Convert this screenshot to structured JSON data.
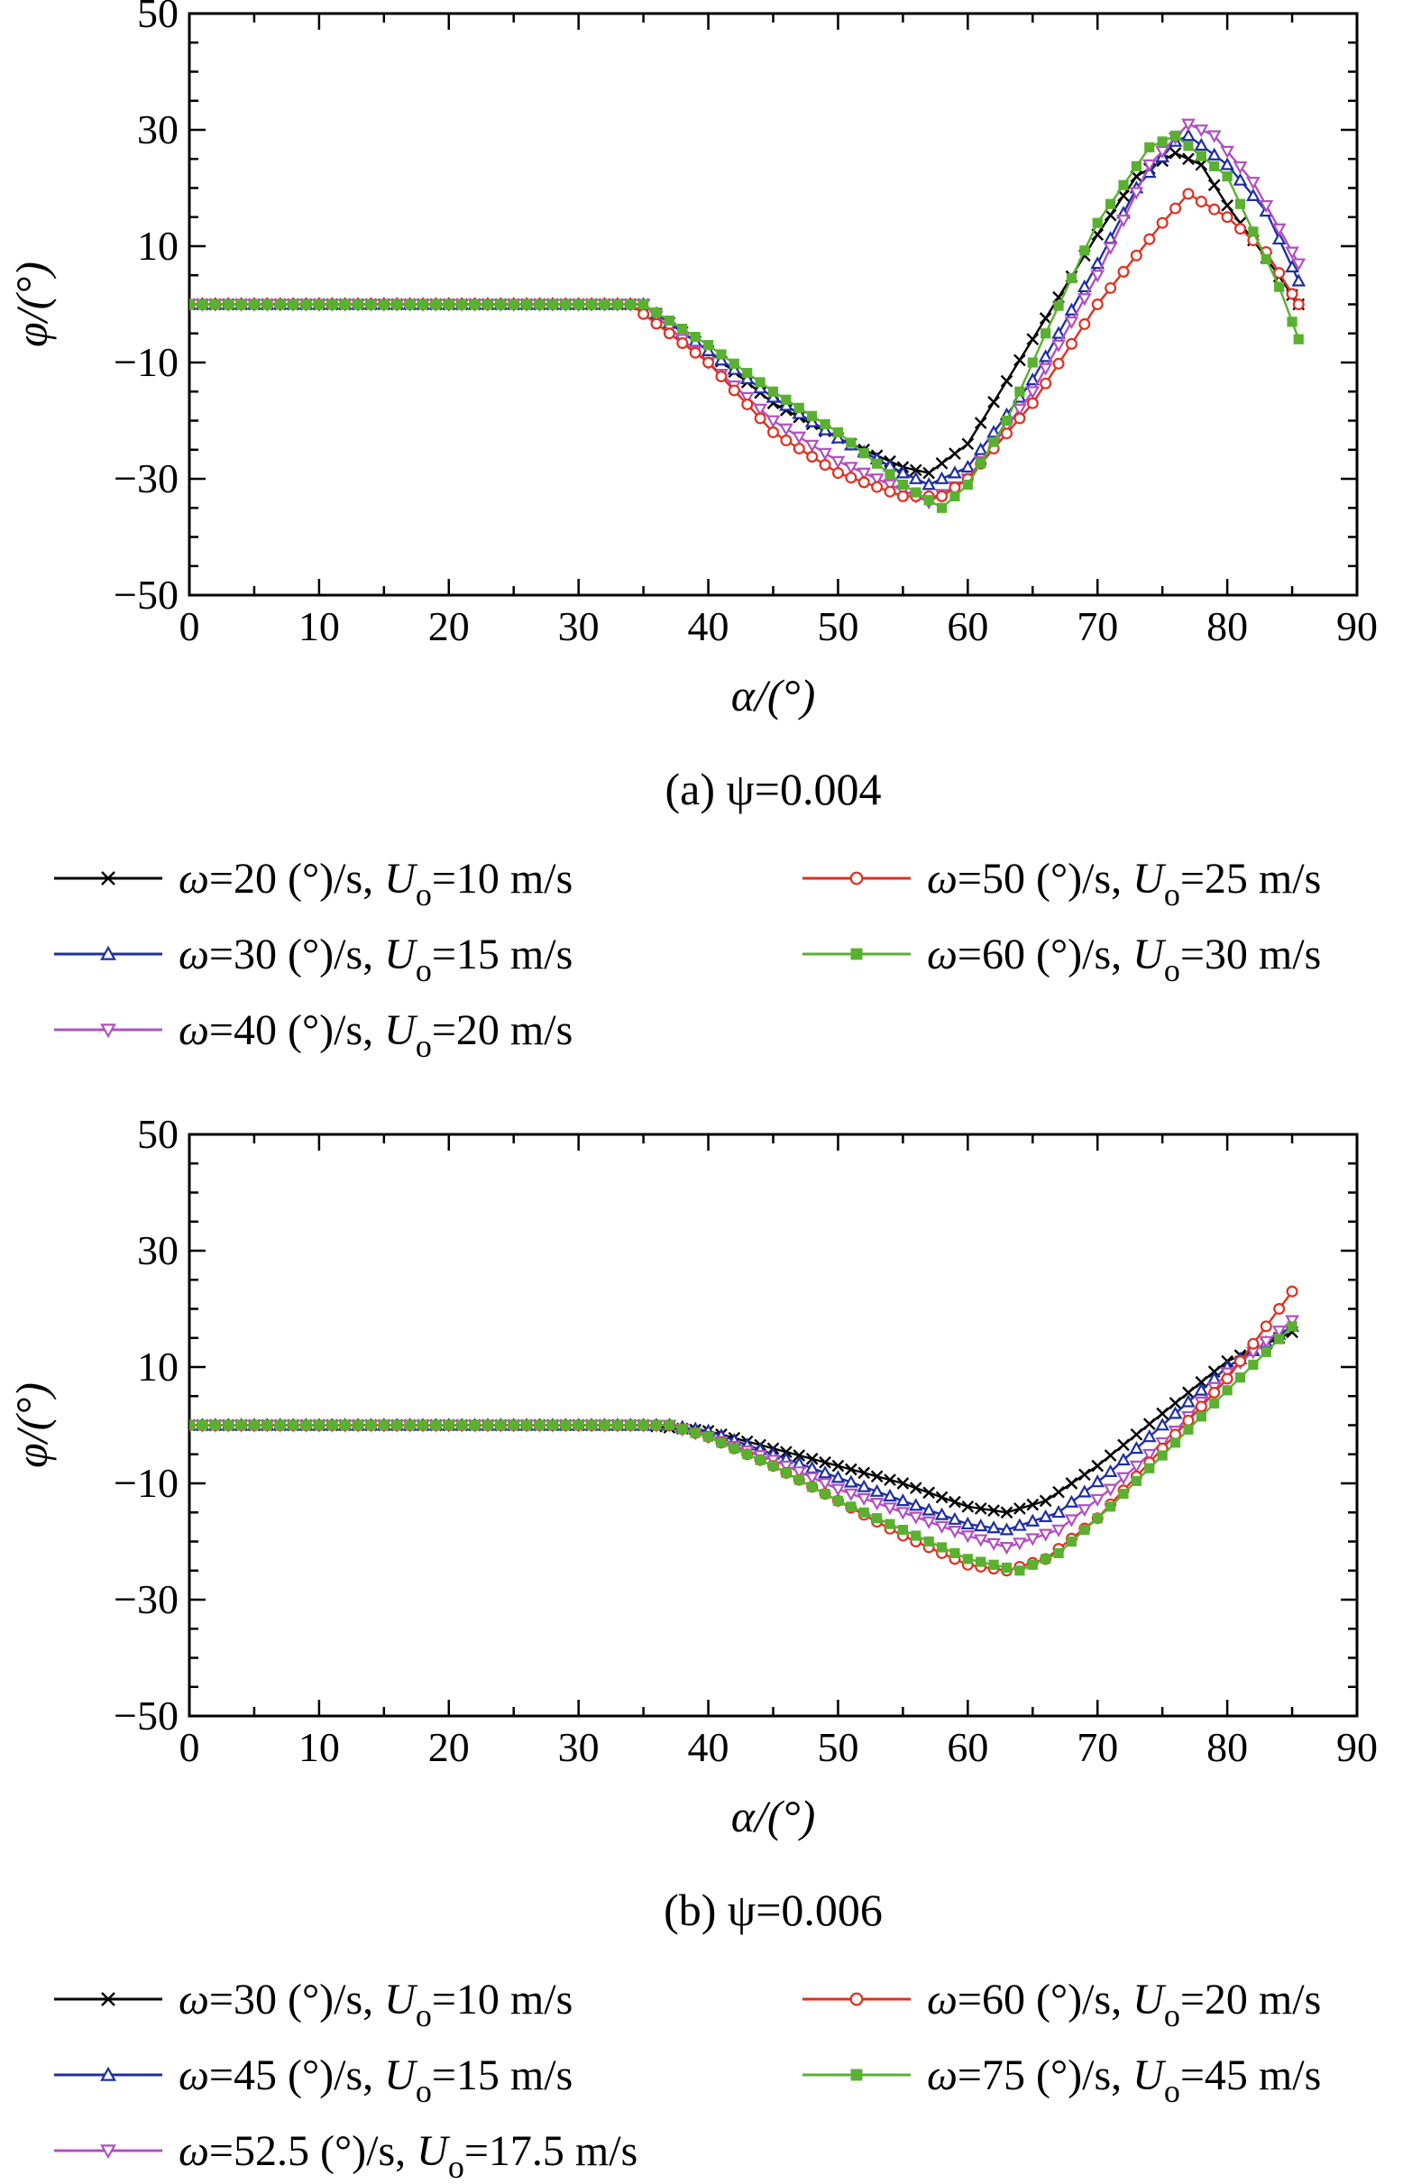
{
  "chart_data": [
    {
      "type": "line",
      "panel": "a",
      "title": "(a) ψ=0.004",
      "xlabel": "α/(°)",
      "ylabel": "φ/(°)",
      "xlim": [
        0,
        90
      ],
      "ylim": [
        -50,
        50
      ],
      "x_ticks": [
        "0",
        "10",
        "20",
        "30",
        "40",
        "50",
        "60",
        "70",
        "80",
        "90"
      ],
      "y_ticks": [
        "50",
        "30",
        "10",
        "−10",
        "−30",
        "−50"
      ],
      "legend_position": "below",
      "series": [
        {
          "name": "ω=20 (°)/s, U_o=10 m/s",
          "omega": "20",
          "U": "10",
          "color": "#000000",
          "marker": "x",
          "points": [
            [
              0,
              0
            ],
            [
              30,
              0
            ],
            [
              35,
              0
            ],
            [
              40,
              -8
            ],
            [
              45,
              -17
            ],
            [
              50,
              -23
            ],
            [
              55,
              -28
            ],
            [
              57,
              -29
            ],
            [
              60,
              -24
            ],
            [
              65,
              -6
            ],
            [
              70,
              12
            ],
            [
              73,
              22
            ],
            [
              76,
              26
            ],
            [
              78,
              24
            ],
            [
              80,
              17
            ],
            [
              83,
              8
            ],
            [
              85.5,
              0
            ]
          ]
        },
        {
          "name": "ω=30 (°)/s, U_o=15 m/s",
          "omega": "30",
          "U": "15",
          "color": "#1f2fa0",
          "marker": "triangle-up",
          "points": [
            [
              0,
              0
            ],
            [
              30,
              0
            ],
            [
              35,
              0
            ],
            [
              40,
              -8
            ],
            [
              45,
              -16
            ],
            [
              50,
              -23
            ],
            [
              55,
              -29
            ],
            [
              57,
              -31
            ],
            [
              60,
              -28
            ],
            [
              65,
              -13
            ],
            [
              70,
              7
            ],
            [
              73,
              20
            ],
            [
              76,
              28
            ],
            [
              77,
              29
            ],
            [
              80,
              24
            ],
            [
              83,
              16
            ],
            [
              85.5,
              4
            ]
          ]
        },
        {
          "name": "ω=40 (°)/s, U_o=20 m/s",
          "omega": "40",
          "U": "20",
          "color": "#b050c0",
          "marker": "triangle-down",
          "points": [
            [
              0,
              0
            ],
            [
              30,
              0
            ],
            [
              35,
              0
            ],
            [
              40,
              -10
            ],
            [
              45,
              -20
            ],
            [
              50,
              -27
            ],
            [
              55,
              -32
            ],
            [
              57,
              -34
            ],
            [
              60,
              -30
            ],
            [
              65,
              -15
            ],
            [
              70,
              5
            ],
            [
              74,
              24
            ],
            [
              77,
              31
            ],
            [
              79,
              29
            ],
            [
              82,
              21
            ],
            [
              85.5,
              7
            ]
          ]
        },
        {
          "name": "ω=50 (°)/s, U_o=25 m/s",
          "omega": "50",
          "U": "25",
          "color": "#e03020",
          "marker": "circle",
          "points": [
            [
              0,
              0
            ],
            [
              30,
              0
            ],
            [
              34,
              0
            ],
            [
              40,
              -10
            ],
            [
              45,
              -22
            ],
            [
              50,
              -29
            ],
            [
              55,
              -33
            ],
            [
              58,
              -33
            ],
            [
              60,
              -30
            ],
            [
              65,
              -17
            ],
            [
              70,
              0
            ],
            [
              75,
              14
            ],
            [
              77,
              19
            ],
            [
              80,
              15
            ],
            [
              83,
              9
            ],
            [
              85.5,
              0
            ]
          ]
        },
        {
          "name": "ω=60 (°)/s, U_o=30 m/s",
          "omega": "60",
          "U": "30",
          "color": "#5ab030",
          "marker": "square",
          "points": [
            [
              0,
              0
            ],
            [
              30,
              0
            ],
            [
              35,
              0
            ],
            [
              40,
              -7
            ],
            [
              45,
              -15
            ],
            [
              50,
              -22
            ],
            [
              55,
              -31
            ],
            [
              58,
              -35
            ],
            [
              60,
              -31
            ],
            [
              63,
              -20
            ],
            [
              66,
              -5
            ],
            [
              70,
              14
            ],
            [
              74,
              27
            ],
            [
              76,
              29
            ],
            [
              80,
              22
            ],
            [
              84,
              3
            ],
            [
              85.5,
              -6
            ]
          ]
        }
      ],
      "legend": [
        {
          "omega": "20",
          "U": "10"
        },
        {
          "omega": "50",
          "U": "25"
        },
        {
          "omega": "30",
          "U": "15"
        },
        {
          "omega": "60",
          "U": "30"
        },
        {
          "omega": "40",
          "U": "20"
        }
      ]
    },
    {
      "type": "line",
      "panel": "b",
      "title": "(b) ψ=0.006",
      "xlabel": "α/(°)",
      "ylabel": "φ/(°)",
      "xlim": [
        0,
        90
      ],
      "ylim": [
        -50,
        50
      ],
      "x_ticks": [
        "0",
        "10",
        "20",
        "30",
        "40",
        "50",
        "60",
        "70",
        "80",
        "90"
      ],
      "y_ticks": [
        "50",
        "30",
        "10",
        "−10",
        "−30",
        "−50"
      ],
      "legend_position": "below",
      "series": [
        {
          "name": "ω=30 (°)/s, U_o=10 m/s",
          "omega": "30",
          "U": "10",
          "color": "#000000",
          "marker": "x",
          "points": [
            [
              0,
              0
            ],
            [
              35,
              0
            ],
            [
              40,
              -1
            ],
            [
              45,
              -4
            ],
            [
              50,
              -7
            ],
            [
              55,
              -10
            ],
            [
              60,
              -14
            ],
            [
              63,
              -15
            ],
            [
              66,
              -13
            ],
            [
              70,
              -7
            ],
            [
              75,
              2
            ],
            [
              80,
              11
            ],
            [
              85,
              16
            ]
          ]
        },
        {
          "name": "ω=45 (°)/s, U_o=15 m/s",
          "omega": "45",
          "U": "15",
          "color": "#1f2fa0",
          "marker": "triangle-up",
          "points": [
            [
              0,
              0
            ],
            [
              37,
              0
            ],
            [
              40,
              -1
            ],
            [
              45,
              -5
            ],
            [
              50,
              -9
            ],
            [
              55,
              -13
            ],
            [
              60,
              -17
            ],
            [
              63,
              -18
            ],
            [
              67,
              -15
            ],
            [
              71,
              -8
            ],
            [
              76,
              2
            ],
            [
              80,
              10
            ],
            [
              85,
              17
            ]
          ]
        },
        {
          "name": "ω=52.5 (°)/s, U_o=17.5 m/s",
          "omega": "52.5",
          "U": "17.5",
          "color": "#b050c0",
          "marker": "triangle-down",
          "points": [
            [
              0,
              0
            ],
            [
              37,
              0
            ],
            [
              40,
              -2
            ],
            [
              45,
              -6
            ],
            [
              50,
              -11
            ],
            [
              55,
              -15
            ],
            [
              60,
              -19
            ],
            [
              63,
              -21
            ],
            [
              67,
              -18
            ],
            [
              71,
              -11
            ],
            [
              76,
              -1
            ],
            [
              80,
              9
            ],
            [
              85,
              18
            ]
          ]
        },
        {
          "name": "ω=60 (°)/s, U_o=20 m/s",
          "omega": "60",
          "U": "20",
          "color": "#e03020",
          "marker": "circle",
          "points": [
            [
              0,
              0
            ],
            [
              37,
              0
            ],
            [
              40,
              -2
            ],
            [
              45,
              -7
            ],
            [
              50,
              -13
            ],
            [
              55,
              -19
            ],
            [
              60,
              -24
            ],
            [
              63,
              -25
            ],
            [
              66,
              -23
            ],
            [
              70,
              -16
            ],
            [
              75,
              -4
            ],
            [
              80,
              8
            ],
            [
              85,
              23
            ]
          ]
        },
        {
          "name": "ω=75 (°)/s, U_o=45 m/s",
          "omega": "75",
          "U": "45",
          "color": "#5ab030",
          "marker": "square",
          "points": [
            [
              0,
              0
            ],
            [
              37,
              0
            ],
            [
              40,
              -2
            ],
            [
              45,
              -7
            ],
            [
              50,
              -13
            ],
            [
              55,
              -18
            ],
            [
              60,
              -23
            ],
            [
              64,
              -25
            ],
            [
              67,
              -22
            ],
            [
              71,
              -14
            ],
            [
              76,
              -3
            ],
            [
              80,
              6
            ],
            [
              85,
              17
            ]
          ]
        }
      ],
      "legend": [
        {
          "omega": "30",
          "U": "10"
        },
        {
          "omega": "60",
          "U": "20"
        },
        {
          "omega": "45",
          "U": "15"
        },
        {
          "omega": "75",
          "U": "45"
        },
        {
          "omega": "52.5",
          "U": "17.5"
        }
      ]
    }
  ],
  "legend_text": {
    "omega_symbol": "ω",
    "omega_unit": " (°)/s, ",
    "u_symbol": "U",
    "u_subscript": "o",
    "u_unit": " m/s",
    "equals": "="
  }
}
